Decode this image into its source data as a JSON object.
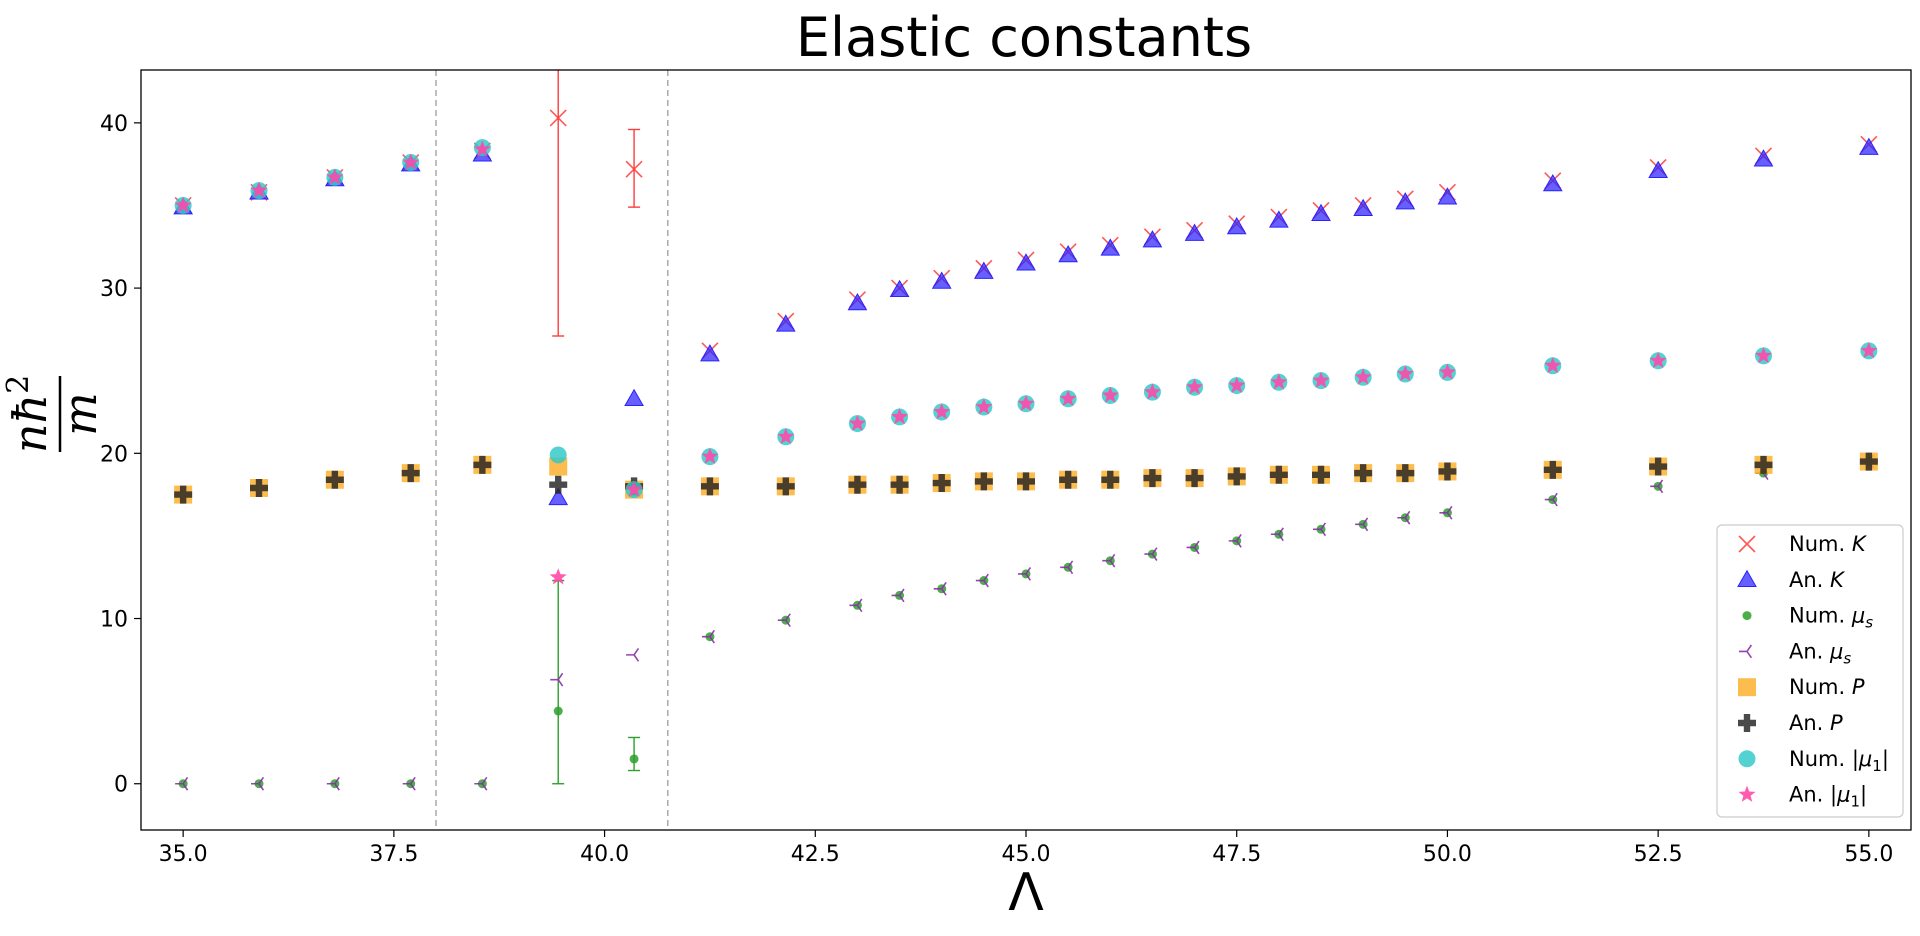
{
  "chart_data": {
    "type": "scatter",
    "title": "Elastic constants",
    "xlabel": "Λ",
    "ylabel_parts": {
      "numerator": "nħ",
      "exponent": "2",
      "denominator": "m"
    },
    "xlim": [
      34.5,
      55.5
    ],
    "ylim": [
      -2.8,
      43.2
    ],
    "xticks": [
      35.0,
      37.5,
      40.0,
      42.5,
      45.0,
      47.5,
      50.0,
      52.5,
      55.0
    ],
    "xtick_labels": [
      "35.0",
      "37.5",
      "40.0",
      "42.5",
      "45.0",
      "47.5",
      "50.0",
      "52.5",
      "55.0"
    ],
    "yticks": [
      0,
      10,
      20,
      30,
      40
    ],
    "ytick_labels": [
      "0",
      "10",
      "20",
      "30",
      "40"
    ],
    "grid": false,
    "vlines": [
      38.0,
      40.75
    ],
    "legend_position": "lower-right",
    "series": [
      {
        "name": "Num. K",
        "marker": "x",
        "color": "#ff3b3b",
        "points": [
          [
            35.0,
            35.0
          ],
          [
            35.9,
            35.8
          ],
          [
            36.8,
            36.7
          ],
          [
            37.7,
            37.6
          ],
          [
            38.55,
            38.3
          ],
          [
            39.45,
            40.3
          ],
          [
            40.35,
            37.2
          ],
          [
            41.25,
            26.2
          ],
          [
            42.15,
            28.0
          ],
          [
            43.0,
            29.3
          ],
          [
            43.5,
            30.0
          ],
          [
            44.0,
            30.6
          ],
          [
            44.5,
            31.2
          ],
          [
            45.0,
            31.7
          ],
          [
            45.5,
            32.2
          ],
          [
            46.0,
            32.6
          ],
          [
            46.5,
            33.1
          ],
          [
            47.0,
            33.5
          ],
          [
            47.5,
            33.9
          ],
          [
            48.0,
            34.3
          ],
          [
            48.5,
            34.7
          ],
          [
            49.0,
            35.0
          ],
          [
            49.5,
            35.4
          ],
          [
            50.0,
            35.8
          ],
          [
            51.25,
            36.5
          ],
          [
            52.5,
            37.3
          ],
          [
            53.75,
            38.0
          ],
          [
            55.0,
            38.7
          ]
        ],
        "errors": [
          [
            39.45,
            27.1,
            43.2
          ],
          [
            40.35,
            34.9,
            39.6
          ]
        ]
      },
      {
        "name": "An. K",
        "marker": "triangle",
        "color": "#2a22ff",
        "points": [
          [
            35.0,
            34.9
          ],
          [
            35.9,
            35.8
          ],
          [
            36.8,
            36.6
          ],
          [
            37.7,
            37.5
          ],
          [
            38.55,
            38.1
          ],
          [
            39.45,
            17.3
          ],
          [
            40.35,
            23.3
          ],
          [
            41.25,
            26.0
          ],
          [
            42.15,
            27.8
          ],
          [
            43.0,
            29.1
          ],
          [
            43.5,
            29.9
          ],
          [
            44.0,
            30.4
          ],
          [
            44.5,
            31.0
          ],
          [
            45.0,
            31.5
          ],
          [
            45.5,
            32.0
          ],
          [
            46.0,
            32.4
          ],
          [
            46.5,
            32.9
          ],
          [
            47.0,
            33.3
          ],
          [
            47.5,
            33.7
          ],
          [
            48.0,
            34.1
          ],
          [
            48.5,
            34.5
          ],
          [
            49.0,
            34.8
          ],
          [
            49.5,
            35.2
          ],
          [
            50.0,
            35.5
          ],
          [
            51.25,
            36.3
          ],
          [
            52.5,
            37.1
          ],
          [
            53.75,
            37.8
          ],
          [
            55.0,
            38.5
          ]
        ]
      },
      {
        "name": "Num. μ_s",
        "marker": "dot",
        "color": "#2ca02c",
        "points": [
          [
            35.0,
            0
          ],
          [
            35.9,
            0
          ],
          [
            36.8,
            0
          ],
          [
            37.7,
            0
          ],
          [
            38.55,
            0
          ],
          [
            39.45,
            4.4
          ],
          [
            40.35,
            1.5
          ],
          [
            41.25,
            8.9
          ],
          [
            42.15,
            9.9
          ],
          [
            43.0,
            10.8
          ],
          [
            43.5,
            11.4
          ],
          [
            44.0,
            11.8
          ],
          [
            44.5,
            12.3
          ],
          [
            45.0,
            12.7
          ],
          [
            45.5,
            13.1
          ],
          [
            46.0,
            13.5
          ],
          [
            46.5,
            13.9
          ],
          [
            47.0,
            14.3
          ],
          [
            47.5,
            14.7
          ],
          [
            48.0,
            15.1
          ],
          [
            48.5,
            15.4
          ],
          [
            49.0,
            15.7
          ],
          [
            49.5,
            16.1
          ],
          [
            50.0,
            16.4
          ],
          [
            51.25,
            17.2
          ],
          [
            52.5,
            18.0
          ],
          [
            53.75,
            18.8
          ],
          [
            55.0,
            19.5
          ]
        ],
        "errors": [
          [
            39.45,
            0.0,
            12.3
          ],
          [
            40.35,
            0.8,
            2.8
          ]
        ]
      },
      {
        "name": "An. μ_s",
        "marker": "tri_left",
        "color": "#8b2fa8",
        "points": [
          [
            35.0,
            0
          ],
          [
            35.9,
            0
          ],
          [
            36.8,
            0
          ],
          [
            37.7,
            0
          ],
          [
            38.55,
            0
          ],
          [
            39.45,
            6.3
          ],
          [
            40.35,
            7.8
          ],
          [
            41.25,
            8.9
          ],
          [
            42.15,
            9.9
          ],
          [
            43.0,
            10.8
          ],
          [
            43.5,
            11.4
          ],
          [
            44.0,
            11.8
          ],
          [
            44.5,
            12.3
          ],
          [
            45.0,
            12.7
          ],
          [
            45.5,
            13.1
          ],
          [
            46.0,
            13.5
          ],
          [
            46.5,
            13.9
          ],
          [
            47.0,
            14.3
          ],
          [
            47.5,
            14.7
          ],
          [
            48.0,
            15.1
          ],
          [
            48.5,
            15.4
          ],
          [
            49.0,
            15.7
          ],
          [
            49.5,
            16.1
          ],
          [
            50.0,
            16.4
          ],
          [
            51.25,
            17.2
          ],
          [
            52.5,
            18.0
          ],
          [
            53.75,
            18.8
          ],
          [
            55.0,
            19.5
          ]
        ]
      },
      {
        "name": "Num. P",
        "marker": "square",
        "color": "#fbb12f",
        "points": [
          [
            35.0,
            17.5
          ],
          [
            35.9,
            17.9
          ],
          [
            36.8,
            18.4
          ],
          [
            37.7,
            18.8
          ],
          [
            38.55,
            19.3
          ],
          [
            39.45,
            19.2
          ],
          [
            40.35,
            17.8
          ],
          [
            41.25,
            18.0
          ],
          [
            42.15,
            18.0
          ],
          [
            43.0,
            18.1
          ],
          [
            43.5,
            18.1
          ],
          [
            44.0,
            18.2
          ],
          [
            44.5,
            18.3
          ],
          [
            45.0,
            18.3
          ],
          [
            45.5,
            18.4
          ],
          [
            46.0,
            18.4
          ],
          [
            46.5,
            18.5
          ],
          [
            47.0,
            18.5
          ],
          [
            47.5,
            18.6
          ],
          [
            48.0,
            18.7
          ],
          [
            48.5,
            18.7
          ],
          [
            49.0,
            18.8
          ],
          [
            49.5,
            18.8
          ],
          [
            50.0,
            18.9
          ],
          [
            51.25,
            19.0
          ],
          [
            52.5,
            19.2
          ],
          [
            53.75,
            19.3
          ],
          [
            55.0,
            19.5
          ]
        ]
      },
      {
        "name": "An. P",
        "marker": "plus",
        "color": "#222222",
        "points": [
          [
            35.0,
            17.5
          ],
          [
            35.9,
            17.9
          ],
          [
            36.8,
            18.4
          ],
          [
            37.7,
            18.8
          ],
          [
            38.55,
            19.3
          ],
          [
            39.45,
            18.1
          ],
          [
            40.35,
            18.0
          ],
          [
            41.25,
            18.0
          ],
          [
            42.15,
            18.0
          ],
          [
            43.0,
            18.1
          ],
          [
            43.5,
            18.1
          ],
          [
            44.0,
            18.2
          ],
          [
            44.5,
            18.3
          ],
          [
            45.0,
            18.3
          ],
          [
            45.5,
            18.4
          ],
          [
            46.0,
            18.4
          ],
          [
            46.5,
            18.5
          ],
          [
            47.0,
            18.5
          ],
          [
            47.5,
            18.6
          ],
          [
            48.0,
            18.7
          ],
          [
            48.5,
            18.7
          ],
          [
            49.0,
            18.8
          ],
          [
            49.5,
            18.8
          ],
          [
            50.0,
            18.9
          ],
          [
            51.25,
            19.0
          ],
          [
            52.5,
            19.2
          ],
          [
            53.75,
            19.3
          ],
          [
            55.0,
            19.5
          ]
        ]
      },
      {
        "name": "Num. |μ_1|",
        "marker": "circle",
        "color": "#2ec8c8",
        "points": [
          [
            35.0,
            35.0
          ],
          [
            35.9,
            35.9
          ],
          [
            36.8,
            36.7
          ],
          [
            37.7,
            37.6
          ],
          [
            38.55,
            38.5
          ],
          [
            39.45,
            19.9
          ],
          [
            40.35,
            17.8
          ],
          [
            41.25,
            19.8
          ],
          [
            42.15,
            21.0
          ],
          [
            43.0,
            21.8
          ],
          [
            43.5,
            22.2
          ],
          [
            44.0,
            22.5
          ],
          [
            44.5,
            22.8
          ],
          [
            45.0,
            23.0
          ],
          [
            45.5,
            23.3
          ],
          [
            46.0,
            23.5
          ],
          [
            46.5,
            23.7
          ],
          [
            47.0,
            24.0
          ],
          [
            47.5,
            24.1
          ],
          [
            48.0,
            24.3
          ],
          [
            48.5,
            24.4
          ],
          [
            49.0,
            24.6
          ],
          [
            49.5,
            24.8
          ],
          [
            50.0,
            24.9
          ],
          [
            51.25,
            25.3
          ],
          [
            52.5,
            25.6
          ],
          [
            53.75,
            25.9
          ],
          [
            55.0,
            26.2
          ]
        ]
      },
      {
        "name": "An. |μ_1|",
        "marker": "star",
        "color": "#ff49a8",
        "points": [
          [
            35.0,
            35.0
          ],
          [
            35.9,
            35.9
          ],
          [
            36.8,
            36.7
          ],
          [
            37.7,
            37.6
          ],
          [
            38.55,
            38.4
          ],
          [
            39.45,
            12.5
          ],
          [
            40.35,
            17.8
          ],
          [
            41.25,
            19.8
          ],
          [
            42.15,
            21.0
          ],
          [
            43.0,
            21.8
          ],
          [
            43.5,
            22.2
          ],
          [
            44.0,
            22.5
          ],
          [
            44.5,
            22.8
          ],
          [
            45.0,
            23.0
          ],
          [
            45.5,
            23.3
          ],
          [
            46.0,
            23.5
          ],
          [
            46.5,
            23.7
          ],
          [
            47.0,
            24.0
          ],
          [
            47.5,
            24.1
          ],
          [
            48.0,
            24.3
          ],
          [
            48.5,
            24.4
          ],
          [
            49.0,
            24.6
          ],
          [
            49.5,
            24.8
          ],
          [
            50.0,
            24.9
          ],
          [
            51.25,
            25.3
          ],
          [
            52.5,
            25.6
          ],
          [
            53.75,
            25.9
          ],
          [
            55.0,
            26.2
          ]
        ]
      }
    ],
    "legend": [
      {
        "prefix": "Num. ",
        "sym": "K",
        "sub": ""
      },
      {
        "prefix": "An. ",
        "sym": "K",
        "sub": ""
      },
      {
        "prefix": "Num. ",
        "sym": "μ",
        "sub": "s"
      },
      {
        "prefix": "An. ",
        "sym": "μ",
        "sub": "s"
      },
      {
        "prefix": "Num. ",
        "sym": "P",
        "sub": ""
      },
      {
        "prefix": "An. ",
        "sym": "P",
        "sub": ""
      },
      {
        "prefix": "Num. |",
        "sym": "μ",
        "sub": "1",
        "suffix": "|"
      },
      {
        "prefix": "An. |",
        "sym": "μ",
        "sub": "1",
        "suffix": "|"
      }
    ]
  }
}
